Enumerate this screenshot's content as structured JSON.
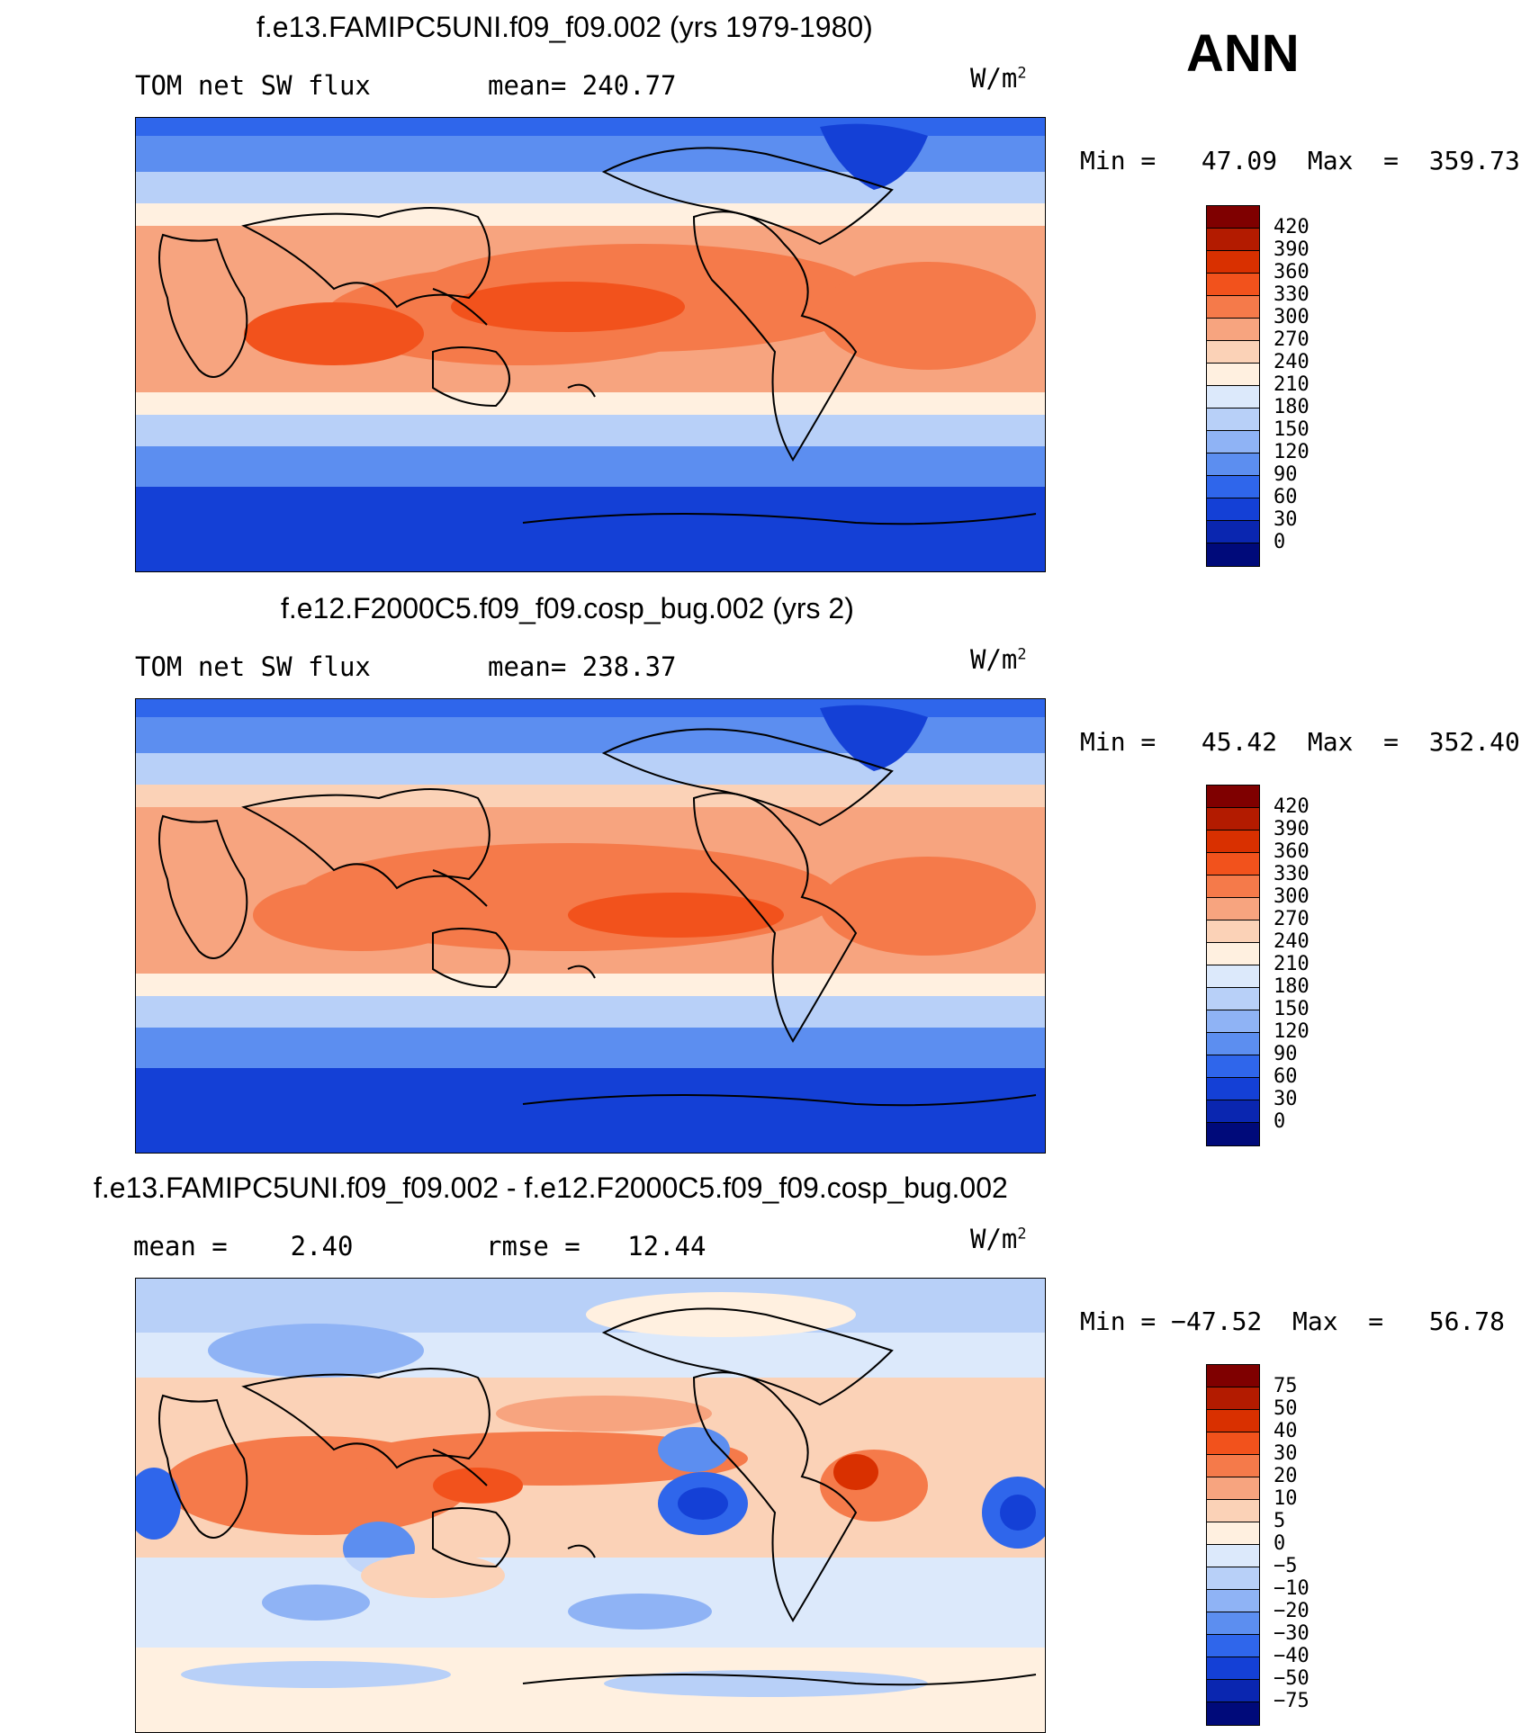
{
  "season": "ANN",
  "units_label": "W/m",
  "units_sup": "2",
  "panels": [
    {
      "title": "f.e13.FAMIPC5UNI.f09_f09.002 (yrs 1979-1980)",
      "left_label": "TOM net SW flux",
      "stat_label": "mean= 240.77",
      "minmax": "Min =   47.09  Max  =  359.73",
      "colorbar_labels": [
        "420",
        "390",
        "360",
        "330",
        "300",
        "270",
        "240",
        "210",
        "180",
        "150",
        "120",
        "90",
        "60",
        "30",
        "0"
      ]
    },
    {
      "title": "f.e12.F2000C5.f09_f09.cosp_bug.002 (yrs 2)",
      "left_label": "TOM net SW flux",
      "stat_label": "mean= 238.37",
      "minmax": "Min =   45.42  Max  =  352.40",
      "colorbar_labels": [
        "420",
        "390",
        "360",
        "330",
        "300",
        "270",
        "240",
        "210",
        "180",
        "150",
        "120",
        "90",
        "60",
        "30",
        "0"
      ]
    },
    {
      "title": "f.e13.FAMIPC5UNI.f09_f09.002 - f.e12.F2000C5.f09_f09.cosp_bug.002",
      "left_label": "mean =    2.40",
      "stat_label": "rmse =   12.44",
      "minmax": "Min = −47.52  Max  =   56.78",
      "colorbar_labels": [
        "75",
        "50",
        "40",
        "30",
        "20",
        "10",
        "5",
        "0",
        "−5",
        "−10",
        "−20",
        "−30",
        "−40",
        "−50",
        "−75"
      ]
    }
  ],
  "colors": {
    "abs_scale": [
      "#7f0000",
      "#b31b00",
      "#d93000",
      "#f2521c",
      "#f57a4a",
      "#f7a47f",
      "#fbd2b7",
      "#fff0e0",
      "#dce9fb",
      "#b8d0f8",
      "#8fb3f5",
      "#5c8ef0",
      "#2f66eb",
      "#1440d6",
      "#0a26b0",
      "#000a7a"
    ],
    "diff_scale": [
      "#7f0000",
      "#b31b00",
      "#d93000",
      "#f2521c",
      "#f57a4a",
      "#f7a47f",
      "#fbd2b7",
      "#fff0e0",
      "#dce9fb",
      "#b8d0f8",
      "#8fb3f5",
      "#5c8ef0",
      "#2f66eb",
      "#1440d6",
      "#0a26b0",
      "#000a7a"
    ]
  }
}
